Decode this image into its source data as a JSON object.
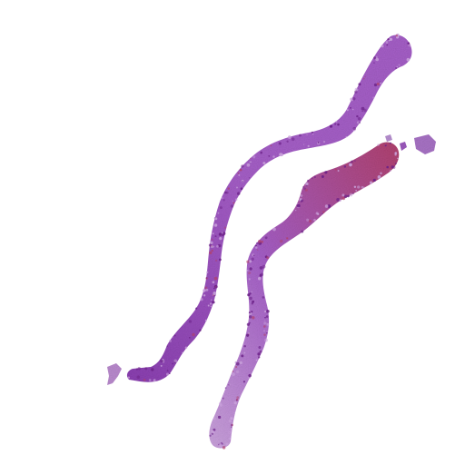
{
  "slide": {
    "background": "#ffffff",
    "tissue_colors": {
      "base_dark": "#8a3fb0",
      "base_mid": "#a45ec6",
      "base_light": "#c9a2db",
      "nuclei": "#6a1f86",
      "edge": "#7b2f9f",
      "red_accent": "#b0416e"
    },
    "cores": [
      {
        "name": "left-core",
        "label": ""
      },
      {
        "name": "right-core",
        "label": ""
      }
    ],
    "fragments": [
      {
        "name": "bottom-left-fragment"
      },
      {
        "name": "top-right-fragment"
      },
      {
        "name": "small-fragment-a"
      },
      {
        "name": "small-fragment-b"
      }
    ]
  }
}
